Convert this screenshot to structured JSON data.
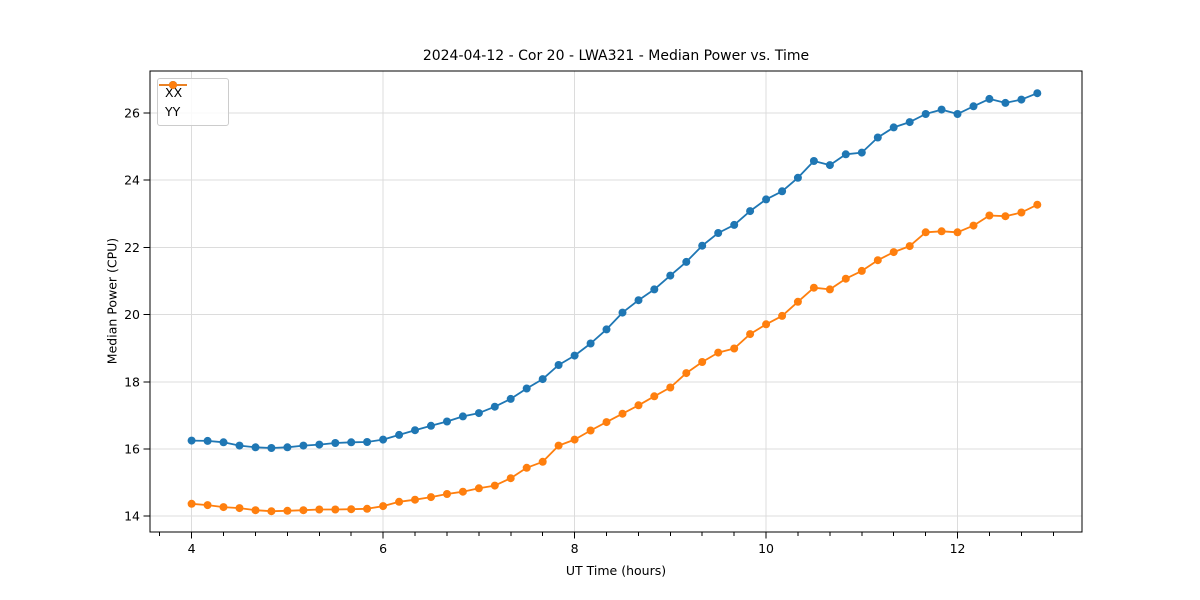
{
  "chart_data": {
    "type": "line",
    "title": "2024-04-12 - Cor 20 - LWA321 - Median Power vs. Time",
    "xlabel": "UT Time (hours)",
    "ylabel": "Median Power (CPU)",
    "xlim": [
      3.565,
      13.3
    ],
    "ylim": [
      13.53,
      27.25
    ],
    "grid": true,
    "legend_position": "upper-left",
    "x_ticks": {
      "values": [
        4,
        6,
        8,
        10,
        12
      ],
      "labels": [
        "4",
        "6",
        "8",
        "10",
        "12"
      ]
    },
    "x_minor_tick_step": 0.33333,
    "y_ticks": {
      "values": [
        14,
        16,
        18,
        20,
        22,
        24,
        26
      ],
      "labels": [
        "14",
        "16",
        "18",
        "20",
        "22",
        "24",
        "26"
      ]
    },
    "x": [
      4.0,
      4.167,
      4.333,
      4.5,
      4.667,
      4.833,
      5.0,
      5.167,
      5.333,
      5.5,
      5.667,
      5.833,
      6.0,
      6.167,
      6.333,
      6.5,
      6.667,
      6.833,
      7.0,
      7.167,
      7.333,
      7.5,
      7.667,
      7.833,
      8.0,
      8.167,
      8.333,
      8.5,
      8.667,
      8.833,
      9.0,
      9.167,
      9.333,
      9.5,
      9.667,
      9.833,
      10.0,
      10.167,
      10.333,
      10.5,
      10.667,
      10.833,
      11.0,
      11.167,
      11.333,
      11.5,
      11.667,
      11.833,
      12.0,
      12.167,
      12.333,
      12.5,
      12.667,
      12.833
    ],
    "series": [
      {
        "name": "XX",
        "color": "#1f77b4",
        "values": [
          16.25,
          16.24,
          16.2,
          16.1,
          16.05,
          16.03,
          16.05,
          16.1,
          16.13,
          16.18,
          16.2,
          16.21,
          16.28,
          16.42,
          16.56,
          16.69,
          16.82,
          16.97,
          17.07,
          17.26,
          17.49,
          17.8,
          18.08,
          18.5,
          18.78,
          19.14,
          19.56,
          20.06,
          20.43,
          20.75,
          21.16,
          21.57,
          22.05,
          22.43,
          22.67,
          23.08,
          23.43,
          23.67,
          24.07,
          24.57,
          24.45,
          24.77,
          24.82,
          25.27,
          25.57,
          25.73,
          25.97,
          26.1,
          25.97,
          26.2,
          26.42,
          26.3,
          26.4,
          26.59
        ]
      },
      {
        "name": "YY",
        "color": "#ff7f0e",
        "values": [
          14.37,
          14.33,
          14.27,
          14.24,
          14.18,
          14.15,
          14.16,
          14.18,
          14.2,
          14.2,
          14.21,
          14.22,
          14.3,
          14.43,
          14.49,
          14.57,
          14.66,
          14.73,
          14.83,
          14.91,
          15.13,
          15.44,
          15.62,
          16.1,
          16.28,
          16.55,
          16.8,
          17.05,
          17.3,
          17.57,
          17.83,
          18.26,
          18.59,
          18.87,
          18.99,
          19.42,
          19.71,
          19.96,
          20.38,
          20.8,
          20.75,
          21.07,
          21.3,
          21.62,
          21.86,
          22.04,
          22.45,
          22.48,
          22.45,
          22.65,
          22.95,
          22.93,
          23.04,
          23.27
        ]
      }
    ]
  }
}
